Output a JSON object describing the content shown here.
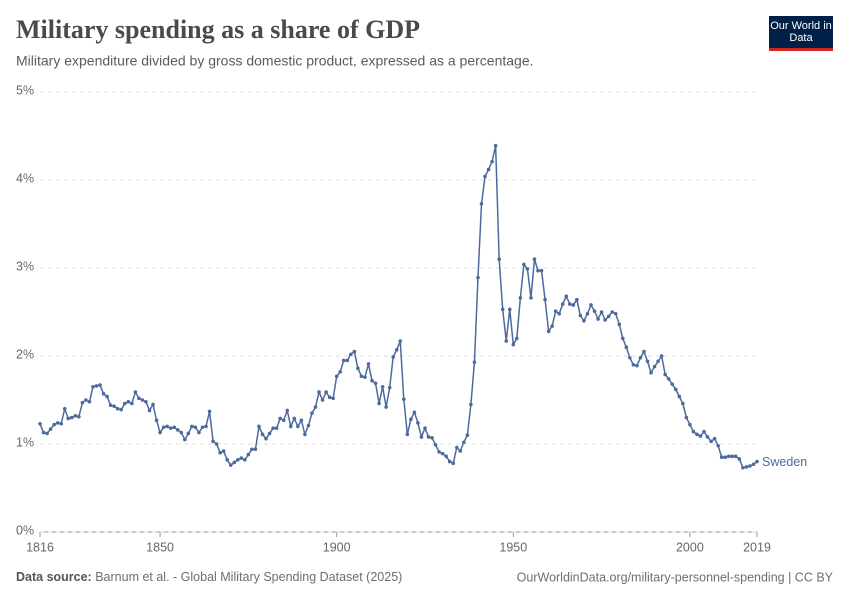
{
  "chart_data": {
    "type": "line",
    "title": "Military spending as a share of GDP",
    "subtitle": "Military expenditure divided by gross domestic product, expressed as a percentage.",
    "logo": "Our World in Data",
    "source_label": "Data source:",
    "source": "Barnum et al. - Global Military Spending Dataset (2025)",
    "url": "OurWorldinData.org/military-personnel-spending | CC BY",
    "grid": true,
    "xlim": [
      1816,
      2019
    ],
    "xticks": [
      1816,
      1850,
      1900,
      1950,
      2000,
      2019
    ],
    "ylim": [
      0,
      5
    ],
    "yticks": [
      {
        "value": 0,
        "label": "0%"
      },
      {
        "value": 1,
        "label": "1%"
      },
      {
        "value": 2,
        "label": "2%"
      },
      {
        "value": 3,
        "label": "3%"
      },
      {
        "value": 4,
        "label": "4%"
      },
      {
        "value": 5,
        "label": "5%"
      }
    ],
    "x": [
      1816,
      1817,
      1818,
      1819,
      1820,
      1821,
      1822,
      1823,
      1824,
      1825,
      1826,
      1827,
      1828,
      1829,
      1830,
      1831,
      1832,
      1833,
      1834,
      1835,
      1836,
      1837,
      1838,
      1839,
      1840,
      1841,
      1842,
      1843,
      1844,
      1845,
      1846,
      1847,
      1848,
      1849,
      1850,
      1851,
      1852,
      1853,
      1854,
      1855,
      1856,
      1857,
      1858,
      1859,
      1860,
      1861,
      1862,
      1863,
      1864,
      1865,
      1866,
      1867,
      1868,
      1869,
      1870,
      1871,
      1872,
      1873,
      1874,
      1875,
      1876,
      1877,
      1878,
      1879,
      1880,
      1881,
      1882,
      1883,
      1884,
      1885,
      1886,
      1887,
      1888,
      1889,
      1890,
      1891,
      1892,
      1893,
      1894,
      1895,
      1896,
      1897,
      1898,
      1899,
      1900,
      1901,
      1902,
      1903,
      1904,
      1905,
      1906,
      1907,
      1908,
      1909,
      1910,
      1911,
      1912,
      1913,
      1914,
      1915,
      1916,
      1917,
      1918,
      1919,
      1920,
      1921,
      1922,
      1923,
      1924,
      1925,
      1926,
      1927,
      1928,
      1929,
      1930,
      1931,
      1932,
      1933,
      1934,
      1935,
      1936,
      1937,
      1938,
      1939,
      1940,
      1941,
      1942,
      1943,
      1944,
      1945,
      1946,
      1947,
      1948,
      1949,
      1950,
      1951,
      1952,
      1953,
      1954,
      1955,
      1956,
      1957,
      1958,
      1959,
      1960,
      1961,
      1962,
      1963,
      1964,
      1965,
      1966,
      1967,
      1968,
      1969,
      1970,
      1971,
      1972,
      1973,
      1974,
      1975,
      1976,
      1977,
      1978,
      1979,
      1980,
      1981,
      1982,
      1983,
      1984,
      1985,
      1986,
      1987,
      1988,
      1989,
      1990,
      1991,
      1992,
      1993,
      1994,
      1995,
      1996,
      1997,
      1998,
      1999,
      2000,
      2001,
      2002,
      2003,
      2004,
      2005,
      2006,
      2007,
      2008,
      2009,
      2010,
      2011,
      2012,
      2013,
      2014,
      2015,
      2016,
      2017,
      2018,
      2019
    ],
    "series": [
      {
        "name": "Sweden",
        "color": "#4c6a9c",
        "values": [
          1.23,
          1.13,
          1.12,
          1.17,
          1.22,
          1.24,
          1.23,
          1.4,
          1.29,
          1.3,
          1.32,
          1.31,
          1.47,
          1.5,
          1.48,
          1.65,
          1.66,
          1.67,
          1.57,
          1.54,
          1.44,
          1.43,
          1.4,
          1.39,
          1.46,
          1.48,
          1.46,
          1.59,
          1.52,
          1.5,
          1.48,
          1.38,
          1.45,
          1.27,
          1.13,
          1.19,
          1.2,
          1.18,
          1.19,
          1.16,
          1.13,
          1.05,
          1.12,
          1.2,
          1.19,
          1.13,
          1.19,
          1.2,
          1.37,
          1.03,
          1.0,
          0.9,
          0.92,
          0.82,
          0.76,
          0.79,
          0.82,
          0.84,
          0.82,
          0.88,
          0.94,
          0.94,
          1.2,
          1.11,
          1.06,
          1.12,
          1.18,
          1.18,
          1.29,
          1.27,
          1.38,
          1.2,
          1.29,
          1.2,
          1.27,
          1.11,
          1.21,
          1.35,
          1.42,
          1.59,
          1.5,
          1.59,
          1.53,
          1.52,
          1.77,
          1.82,
          1.95,
          1.95,
          2.02,
          2.05,
          1.86,
          1.77,
          1.76,
          1.91,
          1.72,
          1.69,
          1.46,
          1.65,
          1.42,
          1.64,
          1.99,
          2.07,
          2.17,
          1.51,
          1.11,
          1.28,
          1.36,
          1.24,
          1.08,
          1.18,
          1.08,
          1.07,
          0.99,
          0.91,
          0.89,
          0.86,
          0.8,
          0.78,
          0.96,
          0.92,
          1.02,
          1.1,
          1.45,
          1.93,
          2.89,
          3.73,
          4.04,
          4.12,
          4.21,
          4.39,
          3.1,
          2.53,
          2.17,
          2.53,
          2.13,
          2.2,
          2.66,
          3.04,
          2.99,
          2.66,
          3.1,
          2.97,
          2.97,
          2.64,
          2.28,
          2.34,
          2.51,
          2.48,
          2.59,
          2.68,
          2.59,
          2.58,
          2.64,
          2.46,
          2.4,
          2.48,
          2.58,
          2.51,
          2.42,
          2.5,
          2.41,
          2.45,
          2.5,
          2.48,
          2.36,
          2.2,
          2.1,
          1.98,
          1.9,
          1.89,
          1.98,
          2.05,
          1.94,
          1.81,
          1.88,
          1.94,
          2.0,
          1.79,
          1.74,
          1.68,
          1.62,
          1.54,
          1.46,
          1.3,
          1.22,
          1.14,
          1.11,
          1.09,
          1.14,
          1.08,
          1.03,
          1.06,
          0.98,
          0.85,
          0.85,
          0.86,
          0.86,
          0.86,
          0.83,
          0.73,
          0.74,
          0.75,
          0.77,
          0.8
        ]
      }
    ]
  }
}
